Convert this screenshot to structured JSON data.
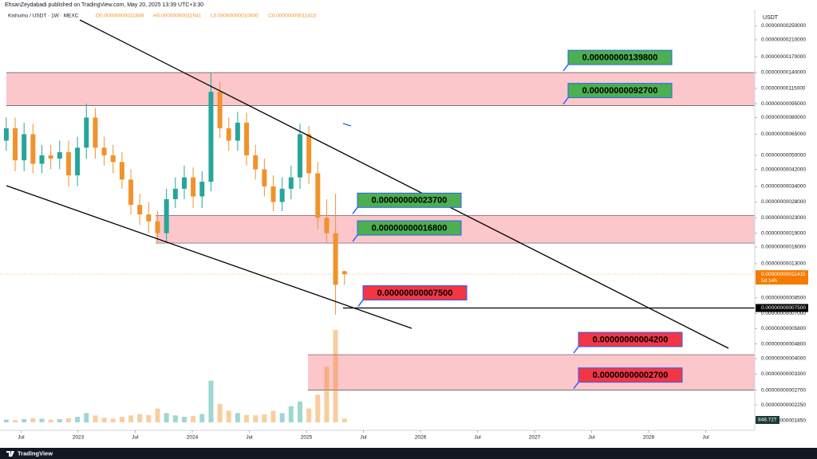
{
  "header": {
    "publisher": "EhsanZeydabadi published on TradingView.com, May 20, 2025 13:39 UTC+3:30"
  },
  "chart_data": {
    "type": "candlestick",
    "symbol": "KishuInu / USDT · 1W · MEXC",
    "ohlc_legend": [
      {
        "value": 1.1849e-10,
        "label": "O0.00000000011849"
      },
      {
        "value": 1.1941e-10,
        "label": "H0.00000000011941"
      },
      {
        "value": 1e-10,
        "label": "L0.00000000010000"
      },
      {
        "value": 1.1415e-10,
        "label": "C0.00000000011415"
      }
    ],
    "currency": "USDT",
    "x": [
      2022.37,
      2022.448,
      2022.526,
      2022.604,
      2022.682,
      2022.76,
      2022.838,
      2022.916,
      2022.994,
      2023.072,
      2023.15,
      2023.228,
      2023.306,
      2023.384,
      2023.462,
      2023.54,
      2023.618,
      2023.696,
      2023.774,
      2023.852,
      2023.93,
      2024.008,
      2024.086,
      2024.164,
      2024.242,
      2024.32,
      2024.398,
      2024.476,
      2024.554,
      2024.632,
      2024.71,
      2024.788,
      2024.866,
      2024.944,
      2025.022,
      2025.1,
      2025.178,
      2025.256,
      2025.334
    ],
    "open": [
      6e-10,
      7e-10,
      4.7e-10,
      6.5e-10,
      4.5e-10,
      5e-10,
      4.8e-10,
      5.2e-10,
      3.9e-10,
      5.5e-10,
      8e-10,
      5.5e-10,
      5e-10,
      4.6e-10,
      3.7e-10,
      2.7e-10,
      2.4e-10,
      2.2e-10,
      1.9e-10,
      2.9e-10,
      3.3e-10,
      3.8e-10,
      3e-10,
      3.6e-10,
      1.1e-09,
      7e-10,
      6e-10,
      7.5e-10,
      5e-10,
      4.2e-10,
      3.4e-10,
      2.8e-10,
      3.3e-10,
      3.8e-10,
      6.5e-10,
      4e-10,
      2.3e-10,
      1.9e-10,
      1.1849e-10
    ],
    "high": [
      8e-10,
      8e-10,
      7.5e-10,
      7.4e-10,
      5.7e-10,
      5.7e-10,
      6e-10,
      6e-10,
      6.3e-10,
      9.5e-10,
      9e-10,
      6.3e-10,
      5.7e-10,
      5.2e-10,
      4.2e-10,
      3.1e-10,
      2.8e-10,
      2.5e-10,
      3.3e-10,
      3.8e-10,
      4.4e-10,
      4.3e-10,
      4.1e-10,
      1.4e-09,
      1.25e-09,
      8e-10,
      8.6e-10,
      8.5e-10,
      5.7e-10,
      4.8e-10,
      3.9e-10,
      3.8e-10,
      4.4e-10,
      7.4e-10,
      7.2e-10,
      4.6e-10,
      2.9e-10,
      3.1e-10,
      1.1941e-10
    ],
    "low": [
      5.3e-10,
      4.1e-10,
      4.1e-10,
      4e-10,
      4e-10,
      4.2e-10,
      4.2e-10,
      3.4e-10,
      3.4e-10,
      4.8e-10,
      4.8e-10,
      4.4e-10,
      4e-10,
      3.3e-10,
      2.4e-10,
      2.1e-10,
      1.9e-10,
      1.7e-10,
      1.7e-10,
      2.6e-10,
      2.9e-10,
      2.6e-10,
      2.6e-10,
      3.2e-10,
      6.2e-10,
      5.3e-10,
      5.3e-10,
      4.4e-10,
      3.7e-10,
      3e-10,
      2.5e-10,
      2.5e-10,
      2.9e-10,
      3.3e-10,
      3.5e-10,
      2e-10,
      1.7e-10,
      6.9e-11,
      1e-10
    ],
    "close": [
      7e-10,
      4.7e-10,
      6.5e-10,
      4.5e-10,
      5e-10,
      4.8e-10,
      5.2e-10,
      3.9e-10,
      5.5e-10,
      8e-10,
      5.5e-10,
      5e-10,
      4.6e-10,
      3.7e-10,
      2.7e-10,
      2.4e-10,
      2.2e-10,
      1.9e-10,
      2.9e-10,
      3.3e-10,
      3.8e-10,
      3e-10,
      3.6e-10,
      1.1e-09,
      7e-10,
      6e-10,
      7.5e-10,
      5e-10,
      4.2e-10,
      3.4e-10,
      2.8e-10,
      3.3e-10,
      3.8e-10,
      6.5e-10,
      4e-10,
      2.3e-10,
      1.9e-10,
      1e-10,
      1.1415e-10
    ],
    "volume": [
      600,
      500,
      700,
      900,
      800,
      600,
      700,
      900,
      1200,
      2000,
      1500,
      1000,
      800,
      1200,
      1500,
      1800,
      1600,
      3000,
      2000,
      1500,
      1200,
      1400,
      1800,
      9000,
      4000,
      2500,
      2000,
      1600,
      1500,
      1700,
      2500,
      2000,
      3500,
      4500,
      3000,
      6000,
      12000,
      20000,
      848.72
    ],
    "volume_label": {
      "value": 848.72,
      "label": "848.72T"
    },
    "up_color": "#26a69a",
    "down_color": "#f0932b",
    "log_scale": true,
    "ylim": [
      1.64e-11,
      3.06e-09
    ],
    "yticks": [
      {
        "value": 2.5e-09,
        "label": "0.00000000250000"
      },
      {
        "value": 2.1e-09,
        "label": "0.00000000210000"
      },
      {
        "value": 1.7e-09,
        "label": "0.00000000170000"
      },
      {
        "value": 1.4e-09,
        "label": "0.00000000140000"
      },
      {
        "value": 1.15e-09,
        "label": "0.00000000115000"
      },
      {
        "value": 9.5e-10,
        "label": "0.00000000095000"
      },
      {
        "value": 8e-10,
        "label": "0.00000000080000"
      },
      {
        "value": 6.5e-10,
        "label": "0.00000000065000"
      },
      {
        "value": 5e-10,
        "label": "0.00000000050000"
      },
      {
        "value": 4.2e-10,
        "label": "0.00000000042000"
      },
      {
        "value": 3.4e-10,
        "label": "0.00000000034000"
      },
      {
        "value": 2.8e-10,
        "label": "0.00000000028000"
      },
      {
        "value": 2.3e-10,
        "label": "0.00000000023000"
      },
      {
        "value": 1.9e-10,
        "label": "0.00000000019000"
      },
      {
        "value": 1.6e-10,
        "label": "0.00000000016000"
      },
      {
        "value": 1.3e-10,
        "label": "0.00000000013000"
      },
      {
        "value": 8.5e-11,
        "label": "0.00000000008500"
      },
      {
        "value": 7e-11,
        "label": "0.00000000007000"
      },
      {
        "value": 5.8e-11,
        "label": "0.00000000005800"
      },
      {
        "value": 4.8e-11,
        "label": "0.00000000004800"
      },
      {
        "value": 4e-11,
        "label": "0.00000000004000"
      },
      {
        "value": 3.3e-11,
        "label": "0.00000000003300"
      },
      {
        "value": 2.7e-11,
        "label": "0.00000000002700"
      },
      {
        "value": 2.25e-11,
        "label": "0.00000000002250"
      },
      {
        "value": 1.85e-11,
        "label": "0.00000000001850"
      }
    ],
    "xlim": [
      2022.315,
      2028.93
    ],
    "xticks": [
      {
        "value": 2022.5,
        "label": "Jul"
      },
      2023,
      {
        "value": 2023.5,
        "label": "Jul"
      },
      2024,
      {
        "value": 2024.5,
        "label": "Jul"
      },
      2025,
      {
        "value": 2025.5,
        "label": "Jul"
      },
      2026,
      {
        "value": 2026.5,
        "label": "Jul"
      },
      2027,
      {
        "value": 2027.5,
        "label": "Jul"
      },
      2028,
      {
        "value": 2028.5,
        "label": "Jul"
      }
    ],
    "last_price": {
      "value": 1.1415e-10,
      "label": "0.00000000011415"
    },
    "countdown": "5d 14h",
    "levels": [
      {
        "value": 1.398e-09,
        "label": "0.00000000139800",
        "color": "#4caf50"
      },
      {
        "value": 9.27e-10,
        "label": "0.00000000092700",
        "color": "#4caf50"
      },
      {
        "value": 2.37e-10,
        "label": "0.00000000023700",
        "color": "#4caf50"
      },
      {
        "value": 1.68e-10,
        "label": "0.00000000016800",
        "color": "#4caf50"
      },
      {
        "value": 7.5e-11,
        "label": "0.00000000007500",
        "color": "#f23645"
      },
      {
        "value": 4.2e-11,
        "label": "0.00000000004200",
        "color": "#f23645"
      },
      {
        "value": 2.7e-11,
        "label": "0.00000000002700",
        "color": "#f23645"
      }
    ]
  },
  "footer": {
    "brand": "TradingView"
  }
}
